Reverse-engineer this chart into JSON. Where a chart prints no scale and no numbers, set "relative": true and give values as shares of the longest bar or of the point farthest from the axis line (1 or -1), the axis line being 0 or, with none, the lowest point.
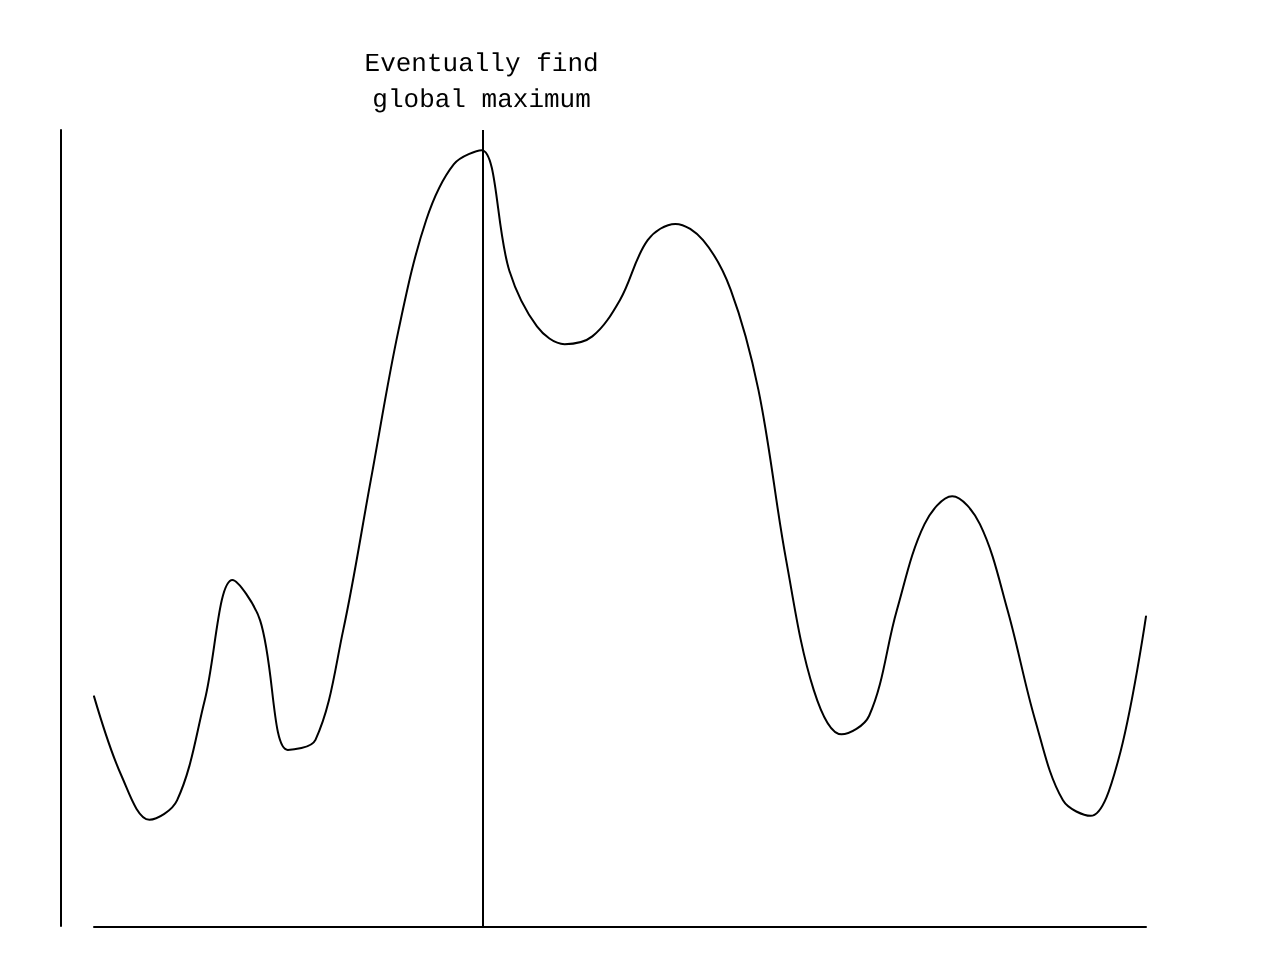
{
  "chart_data": {
    "type": "line",
    "relative": true,
    "color": "#000000",
    "marker": "none",
    "categories": [
      null,
      null,
      null,
      null,
      null,
      null,
      null,
      null,
      null,
      null,
      null,
      null,
      null,
      null,
      null,
      null,
      null,
      null,
      null,
      null,
      null,
      null,
      null,
      null,
      null,
      null,
      null,
      null,
      null,
      null,
      null,
      null,
      null,
      null,
      null,
      null,
      null,
      null,
      null
    ],
    "values": [
      0.296,
      0.193,
      0.137,
      0.162,
      0.291,
      0.446,
      0.394,
      0.227,
      0.24,
      0.381,
      0.575,
      0.768,
      0.91,
      0.982,
      1,
      0.845,
      0.773,
      0.75,
      0.76,
      0.807,
      0.884,
      0.905,
      0.884,
      0.82,
      0.691,
      0.472,
      0.304,
      0.247,
      0.271,
      0.407,
      0.518,
      0.554,
      0.518,
      0.407,
      0.265,
      0.162,
      0.142,
      0.214,
      0.399
    ],
    "annotations": [
      "Eventually find\nglobal maximum"
    ]
  }
}
